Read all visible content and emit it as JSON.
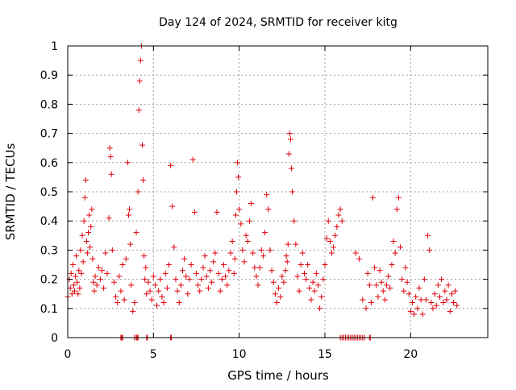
{
  "chart_data": {
    "type": "scatter",
    "title": "Day 124 of 2024, SRMTID for receiver kitg",
    "xlabel": "GPS time / hours",
    "ylabel": "SRMTID / TECUs",
    "xlim": [
      0,
      24.5
    ],
    "ylim": [
      0,
      1
    ],
    "x_ticks": [
      0,
      5,
      10,
      15,
      20
    ],
    "x_tick_labels": [
      "0",
      "5",
      "10",
      "15",
      "20"
    ],
    "y_ticks": [
      0,
      0.1,
      0.2,
      0.3,
      0.4,
      0.5,
      0.6,
      0.7,
      0.8,
      0.9,
      1
    ],
    "y_tick_labels": [
      "0",
      "0.1",
      "0.2",
      "0.3",
      "0.4",
      "0.5",
      "0.6",
      "0.7",
      "0.8",
      "0.9",
      "1"
    ],
    "grid": true,
    "marker": "+",
    "color": "#e0000a",
    "series": [
      {
        "name": "SRMTID",
        "x": [
          0.0,
          0.1,
          0.15,
          0.2,
          0.25,
          0.3,
          0.35,
          0.4,
          0.45,
          0.5,
          0.55,
          0.6,
          0.65,
          0.7,
          0.75,
          0.8,
          0.85,
          0.9,
          0.95,
          1.0,
          1.05,
          1.1,
          1.15,
          1.2,
          1.25,
          1.3,
          1.35,
          1.4,
          1.45,
          1.5,
          1.55,
          1.6,
          1.7,
          1.8,
          1.9,
          2.0,
          2.1,
          2.2,
          2.3,
          2.4,
          2.45,
          2.5,
          2.55,
          2.6,
          2.7,
          2.8,
          2.9,
          3.0,
          3.1,
          3.2,
          3.3,
          3.4,
          3.5,
          3.55,
          3.6,
          3.65,
          3.7,
          3.8,
          3.9,
          4.0,
          4.1,
          4.15,
          4.2,
          4.25,
          4.3,
          4.35,
          4.4,
          4.45,
          4.5,
          4.55,
          4.6,
          4.7,
          4.8,
          4.9,
          5.0,
          5.1,
          5.2,
          5.3,
          5.4,
          5.5,
          5.6,
          5.7,
          5.8,
          5.9,
          6.0,
          6.1,
          6.2,
          6.3,
          6.4,
          6.5,
          6.6,
          6.7,
          6.8,
          6.9,
          7.0,
          7.1,
          7.2,
          7.3,
          7.4,
          7.5,
          7.6,
          7.7,
          7.8,
          7.9,
          8.0,
          8.1,
          8.2,
          8.3,
          8.4,
          8.5,
          8.6,
          8.7,
          8.8,
          8.9,
          9.0,
          9.1,
          9.2,
          9.3,
          9.4,
          9.5,
          9.6,
          9.7,
          9.75,
          9.8,
          9.85,
          9.9,
          9.95,
          10.0,
          10.1,
          10.2,
          10.3,
          10.4,
          10.5,
          10.6,
          10.7,
          10.8,
          10.9,
          11.0,
          11.1,
          11.2,
          11.3,
          11.4,
          11.5,
          11.6,
          11.7,
          11.8,
          11.9,
          12.0,
          12.1,
          12.2,
          12.3,
          12.4,
          12.5,
          12.6,
          12.7,
          12.75,
          12.8,
          12.85,
          12.9,
          12.95,
          13.0,
          13.05,
          13.1,
          13.2,
          13.3,
          13.4,
          13.5,
          13.6,
          13.7,
          13.8,
          13.9,
          14.0,
          14.1,
          14.2,
          14.3,
          14.4,
          14.5,
          14.6,
          14.7,
          14.8,
          14.9,
          15.0,
          15.1,
          15.2,
          15.3,
          15.4,
          15.5,
          15.6,
          15.7,
          15.8,
          15.9,
          16.0,
          16.8,
          17.0,
          17.2,
          17.4,
          17.5,
          17.6,
          17.7,
          17.8,
          17.9,
          18.0,
          18.1,
          18.2,
          18.3,
          18.4,
          18.5,
          18.6,
          18.7,
          18.8,
          18.9,
          19.0,
          19.1,
          19.2,
          19.3,
          19.4,
          19.5,
          19.6,
          19.7,
          19.8,
          19.9,
          20.0,
          20.1,
          20.2,
          20.3,
          20.4,
          20.5,
          20.6,
          20.7,
          20.8,
          20.9,
          21.0,
          21.1,
          21.2,
          21.3,
          21.4,
          21.5,
          21.6,
          21.7,
          21.8,
          21.9,
          22.0,
          22.1,
          22.2,
          22.3,
          22.4,
          22.5,
          22.6,
          22.7,
          3.1,
          3.15,
          3.2,
          3.9,
          4.0,
          4.05,
          4.1,
          4.6,
          4.65,
          6.0,
          6.05,
          15.9,
          16.0,
          16.1,
          16.2,
          16.3,
          16.4,
          16.5,
          16.6,
          16.7,
          16.8,
          16.9,
          17.0,
          17.1,
          17.2,
          17.3,
          17.6,
          17.65
        ],
        "y": [
          0.14,
          0.2,
          0.17,
          0.22,
          0.15,
          0.25,
          0.18,
          0.16,
          0.21,
          0.28,
          0.19,
          0.15,
          0.23,
          0.17,
          0.3,
          0.22,
          0.35,
          0.26,
          0.4,
          0.48,
          0.54,
          0.33,
          0.29,
          0.36,
          0.42,
          0.31,
          0.38,
          0.44,
          0.27,
          0.19,
          0.16,
          0.21,
          0.18,
          0.24,
          0.2,
          0.23,
          0.17,
          0.29,
          0.22,
          0.41,
          0.65,
          0.62,
          0.56,
          0.3,
          0.19,
          0.14,
          0.12,
          0.21,
          0.16,
          0.25,
          0.13,
          0.27,
          0.6,
          0.42,
          0.44,
          0.32,
          0.18,
          0.09,
          0.12,
          0.36,
          0.5,
          0.78,
          0.88,
          0.95,
          1.0,
          0.66,
          0.54,
          0.28,
          0.2,
          0.24,
          0.15,
          0.19,
          0.16,
          0.13,
          0.21,
          0.18,
          0.11,
          0.16,
          0.2,
          0.14,
          0.12,
          0.22,
          0.17,
          0.25,
          0.59,
          0.45,
          0.31,
          0.2,
          0.16,
          0.12,
          0.18,
          0.23,
          0.27,
          0.21,
          0.15,
          0.2,
          0.25,
          0.61,
          0.43,
          0.22,
          0.18,
          0.16,
          0.2,
          0.24,
          0.28,
          0.21,
          0.17,
          0.23,
          0.19,
          0.26,
          0.29,
          0.43,
          0.22,
          0.16,
          0.2,
          0.25,
          0.21,
          0.18,
          0.23,
          0.29,
          0.33,
          0.22,
          0.27,
          0.42,
          0.5,
          0.6,
          0.55,
          0.44,
          0.39,
          0.3,
          0.26,
          0.35,
          0.33,
          0.4,
          0.46,
          0.29,
          0.24,
          0.21,
          0.18,
          0.24,
          0.3,
          0.28,
          0.36,
          0.49,
          0.44,
          0.3,
          0.23,
          0.19,
          0.15,
          0.12,
          0.17,
          0.14,
          0.21,
          0.19,
          0.23,
          0.28,
          0.26,
          0.32,
          0.63,
          0.7,
          0.68,
          0.58,
          0.5,
          0.4,
          0.32,
          0.21,
          0.16,
          0.25,
          0.29,
          0.22,
          0.2,
          0.25,
          0.17,
          0.13,
          0.19,
          0.16,
          0.22,
          0.18,
          0.1,
          0.14,
          0.2,
          0.25,
          0.34,
          0.4,
          0.33,
          0.29,
          0.31,
          0.35,
          0.38,
          0.42,
          0.44,
          0.4,
          0.29,
          0.27,
          0.13,
          0.1,
          0.22,
          0.18,
          0.12,
          0.48,
          0.24,
          0.18,
          0.14,
          0.23,
          0.19,
          0.16,
          0.13,
          0.18,
          0.21,
          0.17,
          0.25,
          0.33,
          0.29,
          0.44,
          0.48,
          0.31,
          0.2,
          0.16,
          0.24,
          0.19,
          0.15,
          0.09,
          0.12,
          0.08,
          0.14,
          0.1,
          0.17,
          0.13,
          0.08,
          0.2,
          0.13,
          0.35,
          0.3,
          0.12,
          0.1,
          0.15,
          0.11,
          0.18,
          0.14,
          0.2,
          0.12,
          0.16,
          0.13,
          0.18,
          0.09,
          0.15,
          0.12,
          0.16,
          0.11,
          0.0,
          0.0,
          0.0,
          0.0,
          0.0,
          0.0,
          0.0,
          0.0,
          0.0,
          0.0,
          0.0,
          0.0,
          0.0,
          0.0,
          0.0,
          0.0,
          0.0,
          0.0,
          0.0,
          0.0,
          0.0,
          0.0,
          0.0,
          0.0,
          0.0,
          0.0,
          0.0,
          0.0
        ]
      }
    ]
  }
}
